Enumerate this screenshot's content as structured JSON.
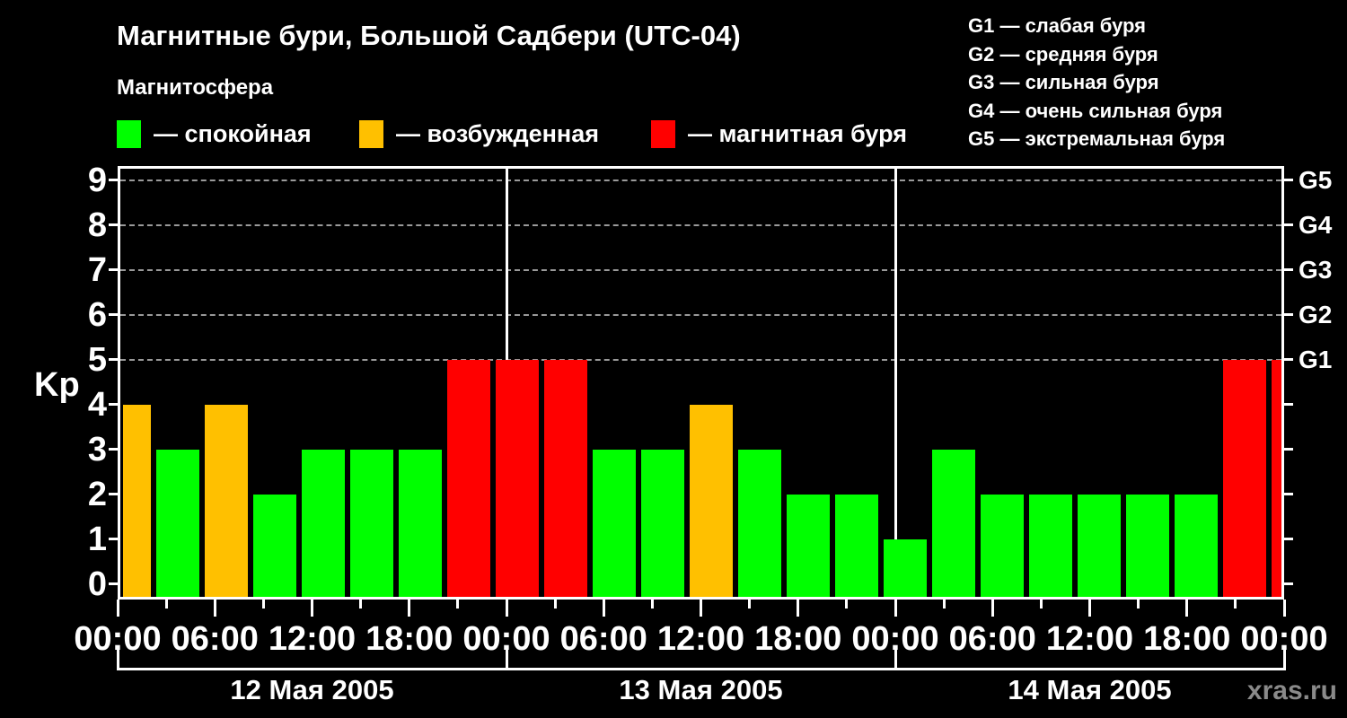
{
  "title": "Магнитные бури, Большой Садбери (UTC-04)",
  "subtitle": "Магнитосфера",
  "legend": {
    "items": [
      {
        "state": "quiet",
        "label": "— спокойная"
      },
      {
        "state": "excited",
        "label": "— возбужденная"
      },
      {
        "state": "storm",
        "label": "— магнитная буря"
      }
    ]
  },
  "storm_scale_legend": [
    "G1 — слабая буря",
    "G2 — средняя буря",
    "G3 — сильная буря",
    "G4 — очень сильная буря",
    "G5 — экстремальная буря"
  ],
  "watermark": "xras.ru",
  "chart_data": {
    "type": "bar",
    "title": "Магнитные бури, Большой Садбери (UTC-04)",
    "ylabel": "Kp",
    "ylim": [
      0,
      9.3
    ],
    "grid": "horizontal-dashed",
    "y_ticks": [
      0,
      1,
      2,
      3,
      4,
      5,
      6,
      7,
      8,
      9
    ],
    "right_axis_labels": [
      {
        "kp": 5,
        "label": "G1"
      },
      {
        "kp": 6,
        "label": "G2"
      },
      {
        "kp": 7,
        "label": "G3"
      },
      {
        "kp": 8,
        "label": "G4"
      },
      {
        "kp": 9,
        "label": "G5"
      }
    ],
    "gridline_values": [
      5,
      6,
      7,
      8,
      9
    ],
    "x_tick_step_hours": 3,
    "x_label_step_hours": 6,
    "x_tick_labels": [
      "00:00",
      "06:00",
      "12:00",
      "18:00",
      "00:00",
      "06:00",
      "12:00",
      "18:00",
      "00:00",
      "06:00",
      "12:00",
      "18:00",
      "00:00"
    ],
    "days": [
      {
        "label": "12 Мая 2005"
      },
      {
        "label": "13 Мая 2005"
      },
      {
        "label": "14 Мая 2005"
      }
    ],
    "bars_note": "each bar = 3-hour Kp interval, 8 per day; last bar clipped at right edge",
    "bars": [
      {
        "kp": 4,
        "state": "excited"
      },
      {
        "kp": 3,
        "state": "quiet"
      },
      {
        "kp": 4,
        "state": "excited"
      },
      {
        "kp": 2,
        "state": "quiet"
      },
      {
        "kp": 3,
        "state": "quiet"
      },
      {
        "kp": 3,
        "state": "quiet"
      },
      {
        "kp": 3,
        "state": "quiet"
      },
      {
        "kp": 5,
        "state": "storm"
      },
      {
        "kp": 5,
        "state": "storm"
      },
      {
        "kp": 5,
        "state": "storm"
      },
      {
        "kp": 3,
        "state": "quiet"
      },
      {
        "kp": 3,
        "state": "quiet"
      },
      {
        "kp": 4,
        "state": "excited"
      },
      {
        "kp": 3,
        "state": "quiet"
      },
      {
        "kp": 2,
        "state": "quiet"
      },
      {
        "kp": 2,
        "state": "quiet"
      },
      {
        "kp": 1,
        "state": "quiet"
      },
      {
        "kp": 3,
        "state": "quiet"
      },
      {
        "kp": 2,
        "state": "quiet"
      },
      {
        "kp": 2,
        "state": "quiet"
      },
      {
        "kp": 2,
        "state": "quiet"
      },
      {
        "kp": 2,
        "state": "quiet"
      },
      {
        "kp": 2,
        "state": "quiet"
      },
      {
        "kp": 5,
        "state": "storm"
      },
      {
        "kp": 5,
        "state": "storm"
      }
    ],
    "colors": {
      "quiet": "#00ff00",
      "excited": "#ffc000",
      "storm": "#ff0000",
      "axis": "#ffffff",
      "grid": "#9a9a9a",
      "background": "#000000",
      "watermark": "#8a8a8a"
    }
  }
}
